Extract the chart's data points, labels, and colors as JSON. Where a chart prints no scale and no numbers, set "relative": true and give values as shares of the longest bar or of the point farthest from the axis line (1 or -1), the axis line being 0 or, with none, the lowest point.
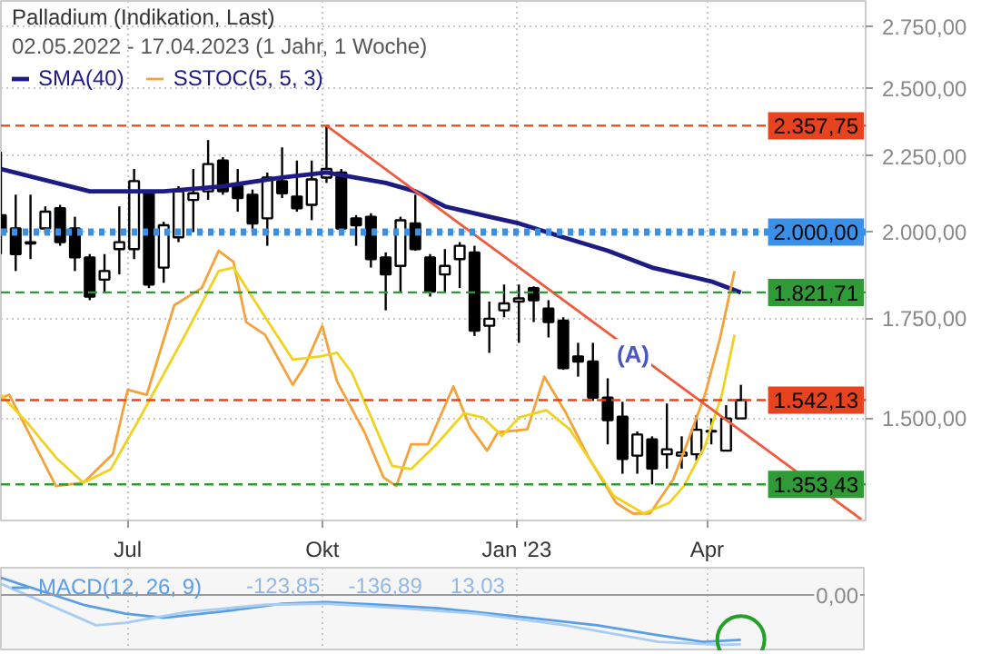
{
  "chart_data": [
    {
      "type": "candlestick",
      "title": "Palladium (Indikation, Last)",
      "subtitle": "02.05.2022 - 17.04.2023  (1 Jahr, 1 Woche)",
      "x": [
        "2022-05-02",
        "2022-05-09",
        "2022-05-16",
        "2022-05-23",
        "2022-05-30",
        "2022-06-06",
        "2022-06-13",
        "2022-06-20",
        "2022-06-27",
        "2022-07-04",
        "2022-07-11",
        "2022-07-18",
        "2022-07-25",
        "2022-08-01",
        "2022-08-08",
        "2022-08-15",
        "2022-08-22",
        "2022-08-29",
        "2022-09-05",
        "2022-09-12",
        "2022-09-19",
        "2022-09-26",
        "2022-10-03",
        "2022-10-10",
        "2022-10-17",
        "2022-10-24",
        "2022-10-31",
        "2022-11-07",
        "2022-11-14",
        "2022-11-21",
        "2022-11-28",
        "2022-12-05",
        "2022-12-12",
        "2022-12-19",
        "2022-12-26",
        "2023-01-02",
        "2023-01-09",
        "2023-01-16",
        "2023-01-23",
        "2023-01-30",
        "2023-02-06",
        "2023-02-13",
        "2023-02-20",
        "2023-02-27",
        "2023-03-06",
        "2023-03-13",
        "2023-03-20",
        "2023-03-27",
        "2023-04-03",
        "2023-04-10",
        "2023-04-17"
      ],
      "ohlc": [
        [
          2053,
          2265,
          1933,
          2000
        ],
        [
          2011,
          2119,
          1883,
          1933
        ],
        [
          1969,
          2119,
          1918,
          1965
        ],
        [
          2011,
          2081,
          1995,
          2064
        ],
        [
          2075,
          2086,
          1958,
          1969
        ],
        [
          2011,
          2048,
          1883,
          1923
        ],
        [
          1923,
          1933,
          1800,
          1810
        ],
        [
          1858,
          1933,
          1820,
          1883
        ],
        [
          1948,
          2081,
          1873,
          1969
        ],
        [
          1948,
          2205,
          1918,
          2164
        ],
        [
          2124,
          2130,
          1834,
          1844
        ],
        [
          1893,
          2032,
          1849,
          2021
        ],
        [
          1984,
          2147,
          1969,
          2130
        ],
        [
          2102,
          2205,
          2000,
          2124
        ],
        [
          2130,
          2306,
          2102,
          2222
        ],
        [
          2234,
          2246,
          2119,
          2130
        ],
        [
          2147,
          2205,
          2064,
          2108
        ],
        [
          2119,
          2136,
          2000,
          2027
        ],
        [
          2043,
          2193,
          1958,
          2176
        ],
        [
          2164,
          2280,
          2108,
          2124
        ],
        [
          2113,
          2234,
          2064,
          2075
        ],
        [
          2086,
          2234,
          2037,
          2170
        ],
        [
          2176,
          2357.75,
          2158,
          2205
        ],
        [
          2193,
          2205,
          1995,
          2011
        ],
        [
          2043,
          2053,
          1958,
          2021
        ],
        [
          2048,
          2059,
          1893,
          1918
        ],
        [
          1923,
          1938,
          1772,
          1873
        ],
        [
          1898,
          2048,
          1824,
          2037
        ],
        [
          2027,
          2119,
          1943,
          1948
        ],
        [
          1923,
          1933,
          1810,
          1824
        ],
        [
          1873,
          1948,
          1824,
          1898
        ],
        [
          1918,
          1969,
          1834,
          1958
        ],
        [
          1938,
          1958,
          1703,
          1717
        ],
        [
          1730,
          1796,
          1659,
          1749
        ],
        [
          1772,
          1844,
          1753,
          1791
        ],
        [
          1796,
          1844,
          1685,
          1805
        ],
        [
          1834,
          1839,
          1740,
          1800
        ],
        [
          1777,
          1800,
          1699,
          1740
        ],
        [
          1744,
          1753,
          1616,
          1620
        ],
        [
          1650,
          1685,
          1599,
          1637
        ],
        [
          1637,
          1685,
          1540,
          1548
        ],
        [
          1548,
          1595,
          1440,
          1495
        ],
        [
          1503,
          1538,
          1376,
          1408
        ],
        [
          1415,
          1469,
          1376,
          1462
        ],
        [
          1451,
          1458,
          1353.43,
          1387
        ],
        [
          1418,
          1534,
          1387,
          1429
        ],
        [
          1415,
          1458,
          1387,
          1422
        ],
        [
          1418,
          1507,
          1404,
          1473
        ],
        [
          1469,
          1499,
          1440,
          1470
        ],
        [
          1426,
          1530,
          1426,
          1499
        ],
        [
          1499,
          1579,
          1499,
          1542.13
        ]
      ],
      "series": [
        {
          "name": "SMA(40)",
          "type": "line",
          "color": "#1c1c84",
          "x": [
            "2022-05-02",
            "2022-06-13",
            "2022-07-18",
            "2022-08-15",
            "2022-09-12",
            "2022-10-03",
            "2022-10-31",
            "2022-11-14",
            "2022-11-28",
            "2022-12-19",
            "2023-01-02",
            "2023-01-23",
            "2023-02-13",
            "2023-03-06",
            "2023-04-03",
            "2023-04-17"
          ],
          "values": [
            2205,
            2130,
            2130,
            2147,
            2176,
            2193,
            2158,
            2130,
            2081,
            2048,
            2027,
            1984,
            1943,
            1893,
            1853,
            1821.71
          ]
        },
        {
          "name": "SSTOC(5, 5, 3)",
          "type": "line",
          "color": "#f5a23a",
          "x": [
            "2022-05-02",
            "2022-05-06",
            "2022-05-28",
            "2022-06-10",
            "2022-06-24",
            "2022-07-01",
            "2022-07-10",
            "2022-07-23",
            "2022-08-05",
            "2022-08-13",
            "2022-08-20",
            "2022-08-26",
            "2022-09-04",
            "2022-09-17",
            "2022-09-23",
            "2022-10-01",
            "2022-10-08",
            "2022-10-21",
            "2022-10-30",
            "2022-11-05",
            "2022-11-12",
            "2022-11-20",
            "2022-12-02",
            "2022-12-10",
            "2022-12-18",
            "2022-12-23",
            "2023-01-06",
            "2023-01-14",
            "2023-01-24",
            "2023-02-04",
            "2023-02-17",
            "2023-02-25",
            "2023-03-05",
            "2023-03-16",
            "2023-03-23",
            "2023-03-31",
            "2023-04-07",
            "2023-04-14"
          ],
          "values": [
            1547,
            1555,
            1350,
            1357,
            1419,
            1567,
            1555,
            1786,
            1834,
            1943,
            1910,
            1740,
            1706,
            1579,
            1629,
            1730,
            1587,
            1467,
            1368,
            1350,
            1440,
            1440,
            1575,
            1478,
            1426,
            1467,
            1474,
            1599,
            1514,
            1411,
            1315,
            1294,
            1294,
            1364,
            1448,
            1555,
            1694,
            1883
          ]
        },
        {
          "type": "line",
          "color": "#f2d21e",
          "x": [
            "2022-05-02",
            "2022-05-15",
            "2022-05-28",
            "2022-06-10",
            "2022-06-23",
            "2022-07-06",
            "2022-07-27",
            "2022-08-13",
            "2022-08-20",
            "2022-09-04",
            "2022-09-17",
            "2022-09-30",
            "2022-10-08",
            "2022-10-15",
            "2022-11-03",
            "2022-11-12",
            "2022-11-24",
            "2022-12-07",
            "2022-12-16",
            "2022-12-25",
            "2023-01-02",
            "2023-01-15",
            "2023-01-26",
            "2023-02-16",
            "2023-03-02",
            "2023-03-14",
            "2023-03-21",
            "2023-03-31",
            "2023-04-08",
            "2023-04-14"
          ],
          "values": [
            1555,
            1486,
            1411,
            1357,
            1386,
            1494,
            1694,
            1883,
            1893,
            1753,
            1642,
            1650,
            1659,
            1609,
            1393,
            1386,
            1440,
            1511,
            1501,
            1459,
            1501,
            1518,
            1474,
            1329,
            1294,
            1315,
            1350,
            1436,
            1555,
            1706
          ]
        },
        {
          "type": "line",
          "color": "#f05a3c",
          "x": [
            "2022-10-03",
            "2023-06-13"
          ],
          "values": [
            2357.75,
            1282
          ]
        }
      ],
      "log": true,
      "xlim": [
        "2022-05-02",
        "2023-06-15"
      ],
      "ylim": [
        1280,
        2860
      ],
      "xticks": [
        {
          "value": "2022-07-01",
          "label": "Jul"
        },
        {
          "value": "2022-10-01",
          "label": "Okt"
        },
        {
          "value": "2023-01-01",
          "label": "Jan '23"
        },
        {
          "value": "2023-04-01",
          "label": "Apr"
        }
      ],
      "yticks": [
        {
          "value": 1500,
          "label": "1.500,00"
        },
        {
          "value": 1750,
          "label": "1.750,00"
        },
        {
          "value": 2000,
          "label": "2.000,00"
        },
        {
          "value": 2250,
          "label": "2.250,00"
        },
        {
          "value": 2500,
          "label": "2.500,00"
        },
        {
          "value": 2750,
          "label": "2.750,00"
        }
      ],
      "ref_lines": [
        {
          "axis": "y",
          "value": 2357.75,
          "label": "2.357,75",
          "color": "#e8431f",
          "line_style": "dashed"
        },
        {
          "axis": "y",
          "value": 2000,
          "label": "2.000,00",
          "color": "#3a8fe8",
          "line_style": "dotted"
        },
        {
          "axis": "y",
          "value": 1821.71,
          "label": "1.821,71",
          "color": "#2f9a36",
          "line_style": "dashed"
        },
        {
          "axis": "y",
          "value": 1542.13,
          "label": "1.542,13",
          "color": "#e8431f",
          "line_style": "dashed"
        },
        {
          "axis": "y",
          "value": 1353.43,
          "label": "1.353,43",
          "color": "#2f9a36",
          "line_style": "dashed"
        }
      ],
      "annotations": [
        {
          "text": "(A)",
          "x": "2023-02-25",
          "y": 1655
        }
      ],
      "grid": true,
      "legend": "top left"
    },
    {
      "type": "line",
      "series": [
        {
          "name": "MACD(12, 26, 9)",
          "color": "#5a9ee6",
          "x": [
            "2022-05-02",
            "2022-06-10",
            "2022-06-30",
            "2022-07-18",
            "2022-08-14",
            "2022-09-12",
            "2022-10-03",
            "2022-10-27",
            "2022-11-25",
            "2022-12-31",
            "2023-02-08",
            "2023-03-09",
            "2023-03-30",
            "2023-04-17"
          ],
          "values": [
            0.34,
            -0.2,
            -0.38,
            -0.46,
            -0.34,
            -0.18,
            -0.15,
            -0.2,
            -0.27,
            -0.43,
            -0.61,
            -0.81,
            -0.94,
            -0.9
          ]
        },
        {
          "color": "#a9cdf2",
          "x": [
            "2022-05-02",
            "2022-06-16",
            "2022-06-30",
            "2022-07-30",
            "2022-09-04",
            "2022-10-03",
            "2022-11-08",
            "2022-12-13",
            "2023-01-24",
            "2023-03-09",
            "2023-04-08",
            "2023-04-17"
          ],
          "values": [
            0.22,
            -0.61,
            -0.56,
            -0.34,
            -0.2,
            -0.18,
            -0.27,
            -0.38,
            -0.61,
            -0.94,
            -1.0,
            -0.99
          ]
        }
      ],
      "relative": true,
      "xlim": [
        "2022-05-02",
        "2023-06-15"
      ],
      "xticks": [
        "2022-07-01",
        "2022-10-01",
        "2023-01-01",
        "2023-04-01"
      ],
      "tick_labels": false,
      "grid": "x",
      "legend": "top left",
      "annotations": [
        "-123,85",
        "-136,89",
        "13,03",
        "0,00"
      ]
    }
  ]
}
